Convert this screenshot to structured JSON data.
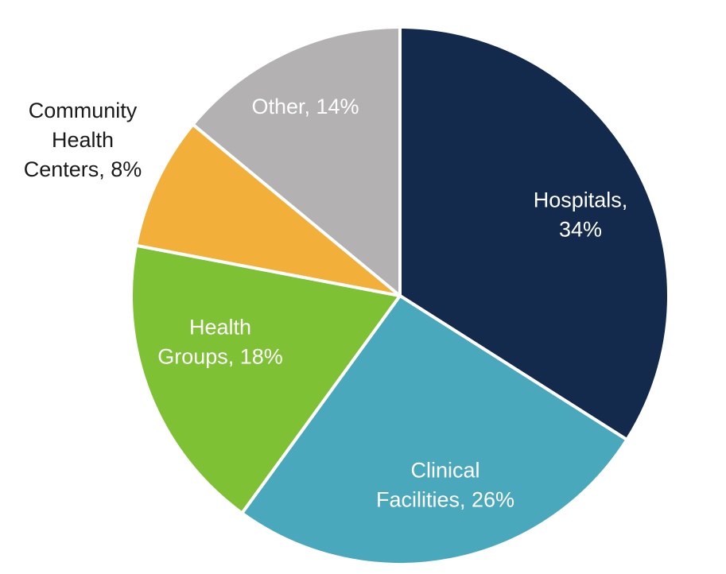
{
  "chart_data": {
    "type": "pie",
    "title": "",
    "slices": [
      {
        "label": "Hospitals, 34%",
        "lines": [
          "Hospitals,",
          "34%"
        ],
        "value": 34,
        "color": "#142a4c",
        "label_color": "#ffffff"
      },
      {
        "label": "Clinical Facilities, 26%",
        "lines": [
          "Clinical",
          "Facilities, 26%"
        ],
        "value": 26,
        "color": "#4aa8bd",
        "label_color": "#ffffff"
      },
      {
        "label": "Health Groups, 18%",
        "lines": [
          "Health",
          "Groups, 18%"
        ],
        "value": 18,
        "color": "#7fc135",
        "label_color": "#ffffff"
      },
      {
        "label": "Community Health Centers, 8%",
        "lines": [
          "Community",
          "Health",
          "Centers, 8%"
        ],
        "value": 8,
        "color": "#f2b03b",
        "label_color": "#1a1a1a"
      },
      {
        "label": "Other, 14%",
        "lines": [
          "Other, 14%"
        ],
        "value": 14,
        "color": "#b3b1b2",
        "label_color": "#ffffff"
      }
    ],
    "start_angle_deg": 0,
    "direction": "clockwise",
    "legend": "none"
  }
}
